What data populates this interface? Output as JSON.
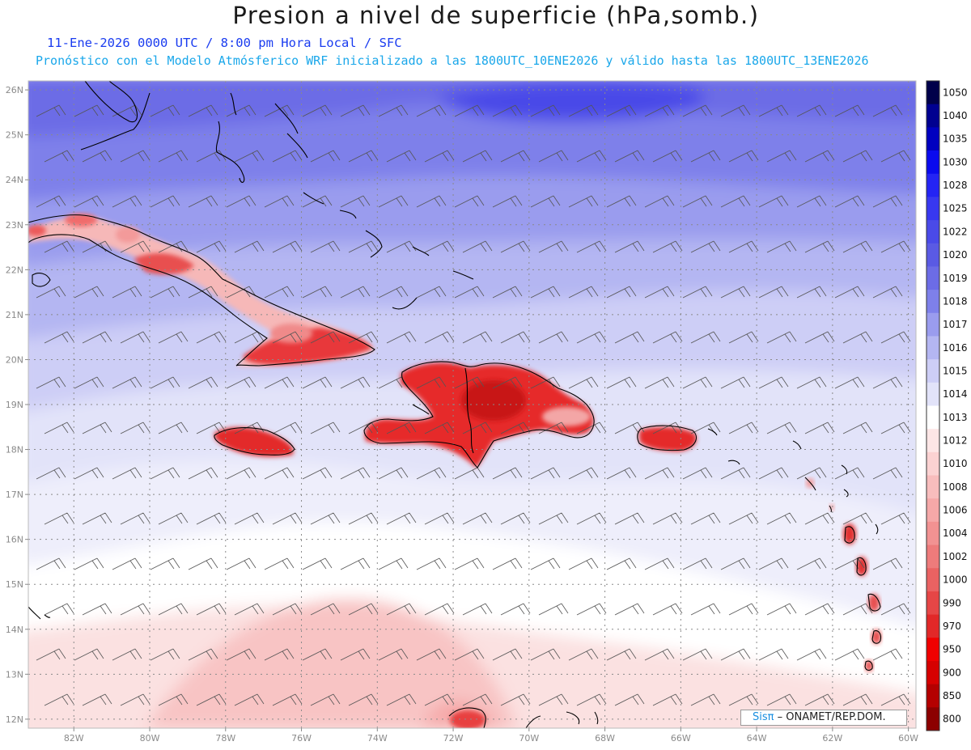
{
  "title": "Presion a nivel de superficie (hPa,somb.)",
  "date_line": "11-Ene-2026       0000 UTC / 8:00 pm Hora Local / SFC",
  "forecast_line": "Pronóstico con el Modelo Atmósferico WRF inicializado a las 1800UTC_10ENE2026 y válido hasta las  1800UTC_13ENE2026",
  "map": {
    "lon_range": [
      -83.2,
      -59.8
    ],
    "lat_range": [
      11.8,
      26.2
    ],
    "lon_labels": [
      "82W",
      "80W",
      "78W",
      "76W",
      "74W",
      "72W",
      "70W",
      "68W",
      "66W",
      "64W",
      "62W",
      "60W"
    ],
    "lat_labels": [
      "26N",
      "25N",
      "24N",
      "23N",
      "22N",
      "21N",
      "20N",
      "19N",
      "18N",
      "17N",
      "16N",
      "15N",
      "14N",
      "13N",
      "12N"
    ],
    "gridlines": "dotted",
    "wind_barbs": true
  },
  "colorbar": {
    "labels": [
      "1050",
      "1040",
      "1035",
      "1030",
      "1028",
      "1025",
      "1022",
      "1020",
      "1019",
      "1018",
      "1017",
      "1016",
      "1015",
      "1014",
      "1013",
      "1012",
      "1010",
      "1008",
      "1006",
      "1004",
      "1002",
      "1000",
      "990",
      "970",
      "950",
      "900",
      "850",
      "800"
    ],
    "colors": [
      "#00004a",
      "#000090",
      "#0000c0",
      "#0a0aee",
      "#2424f4",
      "#3838f0",
      "#4a4ae8",
      "#5a5ae4",
      "#6c6ce6",
      "#7e80ea",
      "#9a9cee",
      "#b4b6f2",
      "#cdcef6",
      "#e2e3f9",
      "#ffffff",
      "#fde6e6",
      "#fbd2d2",
      "#f8bdbd",
      "#f5a8a8",
      "#f29292",
      "#ee7b7b",
      "#ea6262",
      "#e64646",
      "#e22828",
      "#f00000",
      "#d60000",
      "#b40000",
      "#8c0000"
    ]
  },
  "credit": {
    "brand": "Sisπ",
    "text": " – ONAMET/REP.DOM."
  }
}
